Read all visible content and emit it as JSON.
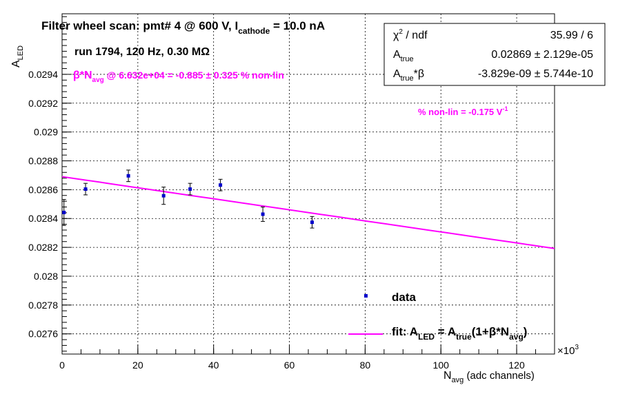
{
  "chart_data": {
    "type": "scatter",
    "title_pre": "Filter wheel scan: pmt#   4 @   600 V, I",
    "title_sub": "cathode",
    "title_post": " = 10.0 nA",
    "run_info": "run 1794, 120 Hz, 0.30 MΩ",
    "annotation_nonlin": {
      "pre": "β*N",
      "sub": "avg",
      "post": " @ 6.632e+04 = -0.885 ± 0.325 % non-lin"
    },
    "annotation_slope": {
      "text": "% non-lin = -0.175 V",
      "sup": "-1"
    },
    "xlabel": {
      "main": "N",
      "sub": "avg",
      "post": " (adc channels)"
    },
    "ylabel": {
      "main": "A",
      "sub": "LED"
    },
    "x_multiplier": {
      "base": "×10",
      "exp": "3"
    },
    "xlim": [
      0,
      130000
    ],
    "ylim": [
      0.02746,
      0.02982
    ],
    "x_ticks": [
      0,
      20000,
      40000,
      60000,
      80000,
      100000,
      120000
    ],
    "x_tick_labels": [
      "0",
      "20",
      "40",
      "60",
      "80",
      "100",
      "120"
    ],
    "y_ticks": [
      0.0276,
      0.0278,
      0.028,
      0.0282,
      0.0284,
      0.0286,
      0.0288,
      0.029,
      0.0292,
      0.0294
    ],
    "y_tick_labels": [
      "0.0276",
      "0.0278",
      "0.028",
      "0.0282",
      "0.0284",
      "0.0286",
      "0.0288",
      "0.029",
      "0.0292",
      "0.0294"
    ],
    "grid": true,
    "series": [
      {
        "name": "data",
        "x": [
          500,
          6200,
          17500,
          26800,
          33800,
          41800,
          53000,
          66000
        ],
        "y": [
          0.028442,
          0.028604,
          0.028696,
          0.028558,
          0.028604,
          0.028632,
          0.02843,
          0.028374
        ],
        "yerr": [
          9e-05,
          4e-05,
          4e-05,
          6e-05,
          4e-05,
          4e-05,
          5e-05,
          4e-05
        ]
      }
    ],
    "fit": {
      "name_pre": "fit: A",
      "name_sub1": "LED",
      "name_mid1": " = A",
      "name_sub2": "true",
      "name_mid2": "(1+β*N",
      "name_sub3": "avg",
      "name_post": ")",
      "A_true": 0.02869,
      "A_true_beta": -3.829e-09,
      "x_range": [
        0,
        130000
      ]
    },
    "stats": [
      {
        "label": "χ",
        "label_sup": "2",
        "label_post": " / ndf",
        "value": "35.99 / 6"
      },
      {
        "label": "A",
        "label_sub": "true",
        "label_post": "",
        "value": "0.02869 ± 2.129e-05"
      },
      {
        "label": "A",
        "label_sub": "true",
        "label_post": "*β",
        "value": "-3.829e-09 ± 5.744e-10"
      }
    ],
    "legend_placement": "bottom-right",
    "colors": {
      "data": "#0000cc",
      "fit": "#ff00ff",
      "grid": "#000000"
    }
  }
}
